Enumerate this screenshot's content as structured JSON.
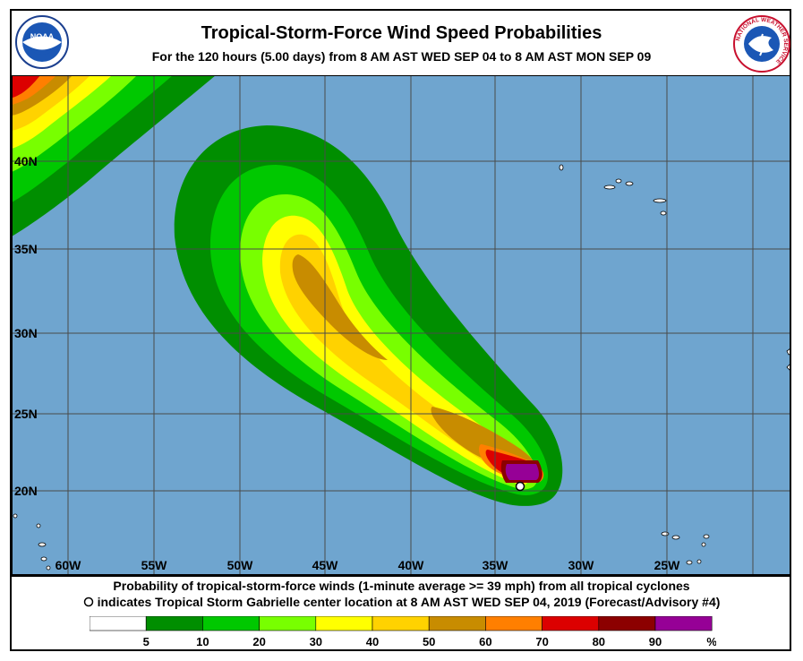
{
  "title": "Tropical-Storm-Force Wind Speed Probabilities",
  "subtitle": "For the 120 hours (5.00 days) from 8 AM AST WED SEP 04 to 8 AM AST MON SEP 09",
  "logos": {
    "noaa_text": "NOAA",
    "nws_ring_text": "NATIONAL WEATHER SERVICE"
  },
  "map": {
    "ocean_color": "#6FA5CF",
    "land_color": "#FFFFFF",
    "grid_color": "#4A4A4A",
    "lon_labels": [
      "60W",
      "55W",
      "50W",
      "45W",
      "40W",
      "35W",
      "30W",
      "25W"
    ],
    "lat_labels": [
      "40N",
      "35N",
      "30N",
      "25N",
      "20N"
    ],
    "storm_center": {
      "lon": -33.7,
      "lat": 20.3
    }
  },
  "caption": {
    "line1": "Probability of tropical-storm-force winds (1-minute average >= 39 mph) from all tropical cyclones",
    "line2": "indicates Tropical Storm Gabrielle center location at 8 AM AST WED SEP 04, 2019 (Forecast/Advisory #4)"
  },
  "legend": {
    "colors": [
      "#FFFFFF",
      "#008E00",
      "#00C800",
      "#78FF00",
      "#FFFF00",
      "#FFD200",
      "#C88C00",
      "#FF7F00",
      "#DC0000",
      "#8C0000",
      "#960096"
    ],
    "labels": [
      "5",
      "10",
      "20",
      "30",
      "40",
      "50",
      "60",
      "70",
      "80",
      "90",
      "%"
    ]
  }
}
